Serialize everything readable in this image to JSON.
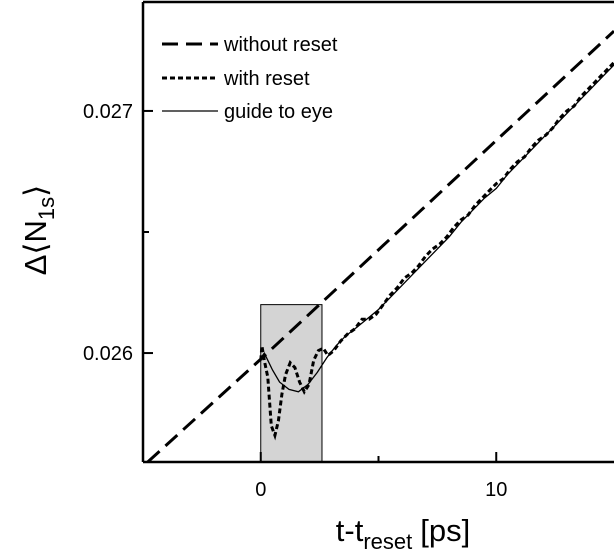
{
  "chart_data": {
    "type": "line",
    "xlabel_main": "t-t",
    "xlabel_sub": "reset",
    "xlabel_unit": "[ps]",
    "ylabel_prefix": "Δ⟨N",
    "ylabel_sub": "1s",
    "ylabel_suffix": "⟩",
    "xlim": [
      -5,
      15
    ],
    "ylim": [
      0.02555,
      0.02745
    ],
    "x_ticks": [
      {
        "value": 0,
        "label": "0"
      },
      {
        "value": 10,
        "label": "10"
      }
    ],
    "y_ticks": [
      {
        "value": 0.026,
        "label": "0.026"
      },
      {
        "value": 0.027,
        "label": "0.027"
      }
    ],
    "shaded_region": {
      "x_start": 0,
      "x_end": 2.6,
      "color": "#d4d4d4"
    },
    "legend_position": "top-left",
    "series": [
      {
        "name": "without reset",
        "style": "long-dash",
        "points": [
          [
            -4.8,
            0.02555
          ],
          [
            0,
            0.025975
          ],
          [
            15,
            0.02733
          ]
        ]
      },
      {
        "name": "with reset",
        "style": "short-dash",
        "points": [
          [
            0,
            0.02597
          ],
          [
            0.05,
            0.02603
          ],
          [
            0.15,
            0.02597
          ],
          [
            0.3,
            0.0259
          ],
          [
            0.45,
            0.0257
          ],
          [
            0.6,
            0.02566
          ],
          [
            0.75,
            0.02572
          ],
          [
            0.9,
            0.02583
          ],
          [
            1.05,
            0.02591
          ],
          [
            1.25,
            0.02596
          ],
          [
            1.45,
            0.02594
          ],
          [
            1.65,
            0.02588
          ],
          [
            1.85,
            0.02584
          ],
          [
            2.05,
            0.02587
          ],
          [
            2.25,
            0.02597
          ],
          [
            2.45,
            0.02601
          ],
          [
            2.65,
            0.02602
          ],
          [
            2.85,
            0.02599
          ],
          [
            3.1,
            0.02601
          ],
          [
            3.4,
            0.02605
          ],
          [
            3.7,
            0.02608
          ],
          [
            4.0,
            0.0261
          ],
          [
            4.3,
            0.02614
          ],
          [
            4.6,
            0.02614
          ],
          [
            4.9,
            0.02616
          ],
          [
            5.2,
            0.0262
          ],
          [
            5.5,
            0.02624
          ],
          [
            5.8,
            0.02627
          ],
          [
            6.1,
            0.02631
          ],
          [
            6.4,
            0.02633
          ],
          [
            6.7,
            0.02636
          ],
          [
            7.0,
            0.0264
          ],
          [
            7.3,
            0.02643
          ],
          [
            7.6,
            0.02645
          ],
          [
            7.9,
            0.02648
          ],
          [
            8.2,
            0.02652
          ],
          [
            8.5,
            0.02655
          ],
          [
            8.8,
            0.02657
          ],
          [
            9.1,
            0.02661
          ],
          [
            9.4,
            0.02664
          ],
          [
            9.7,
            0.02667
          ],
          [
            10.0,
            0.0267
          ],
          [
            10.3,
            0.02672
          ],
          [
            10.6,
            0.02676
          ],
          [
            10.9,
            0.02679
          ],
          [
            11.2,
            0.02681
          ],
          [
            11.5,
            0.02685
          ],
          [
            11.8,
            0.02688
          ],
          [
            12.1,
            0.0269
          ],
          [
            12.4,
            0.02693
          ],
          [
            12.7,
            0.02697
          ],
          [
            13.0,
            0.027
          ],
          [
            13.3,
            0.02702
          ],
          [
            13.6,
            0.02706
          ],
          [
            13.9,
            0.02709
          ],
          [
            14.2,
            0.02712
          ],
          [
            14.5,
            0.02715
          ],
          [
            14.8,
            0.02718
          ],
          [
            15.0,
            0.0272
          ]
        ]
      },
      {
        "name": "guide to eye",
        "style": "solid-thin",
        "points": [
          [
            0,
            0.02598
          ],
          [
            0.15,
            0.026
          ],
          [
            0.3,
            0.02597
          ],
          [
            0.5,
            0.02593
          ],
          [
            0.8,
            0.02588
          ],
          [
            1.2,
            0.02585
          ],
          [
            1.6,
            0.02584
          ],
          [
            2.0,
            0.02587
          ],
          [
            2.4,
            0.02592
          ],
          [
            2.8,
            0.02598
          ],
          [
            3.2,
            0.02603
          ],
          [
            3.6,
            0.02607
          ],
          [
            4.0,
            0.0261
          ],
          [
            4.5,
            0.02614
          ],
          [
            5.0,
            0.02618
          ],
          [
            5.5,
            0.02623
          ],
          [
            6.0,
            0.02628
          ],
          [
            6.5,
            0.02633
          ],
          [
            7.0,
            0.02638
          ],
          [
            7.5,
            0.02643
          ],
          [
            8.0,
            0.02648
          ],
          [
            8.5,
            0.02654
          ],
          [
            9.0,
            0.02659
          ],
          [
            9.5,
            0.02664
          ],
          [
            10.0,
            0.02668
          ],
          [
            10.5,
            0.02674
          ],
          [
            11.0,
            0.02679
          ],
          [
            11.5,
            0.02684
          ],
          [
            12.0,
            0.02689
          ],
          [
            12.5,
            0.02694
          ],
          [
            13.0,
            0.02699
          ],
          [
            13.5,
            0.02704
          ],
          [
            14.0,
            0.02709
          ],
          [
            14.5,
            0.02714
          ],
          [
            15.0,
            0.02719
          ]
        ]
      }
    ]
  }
}
